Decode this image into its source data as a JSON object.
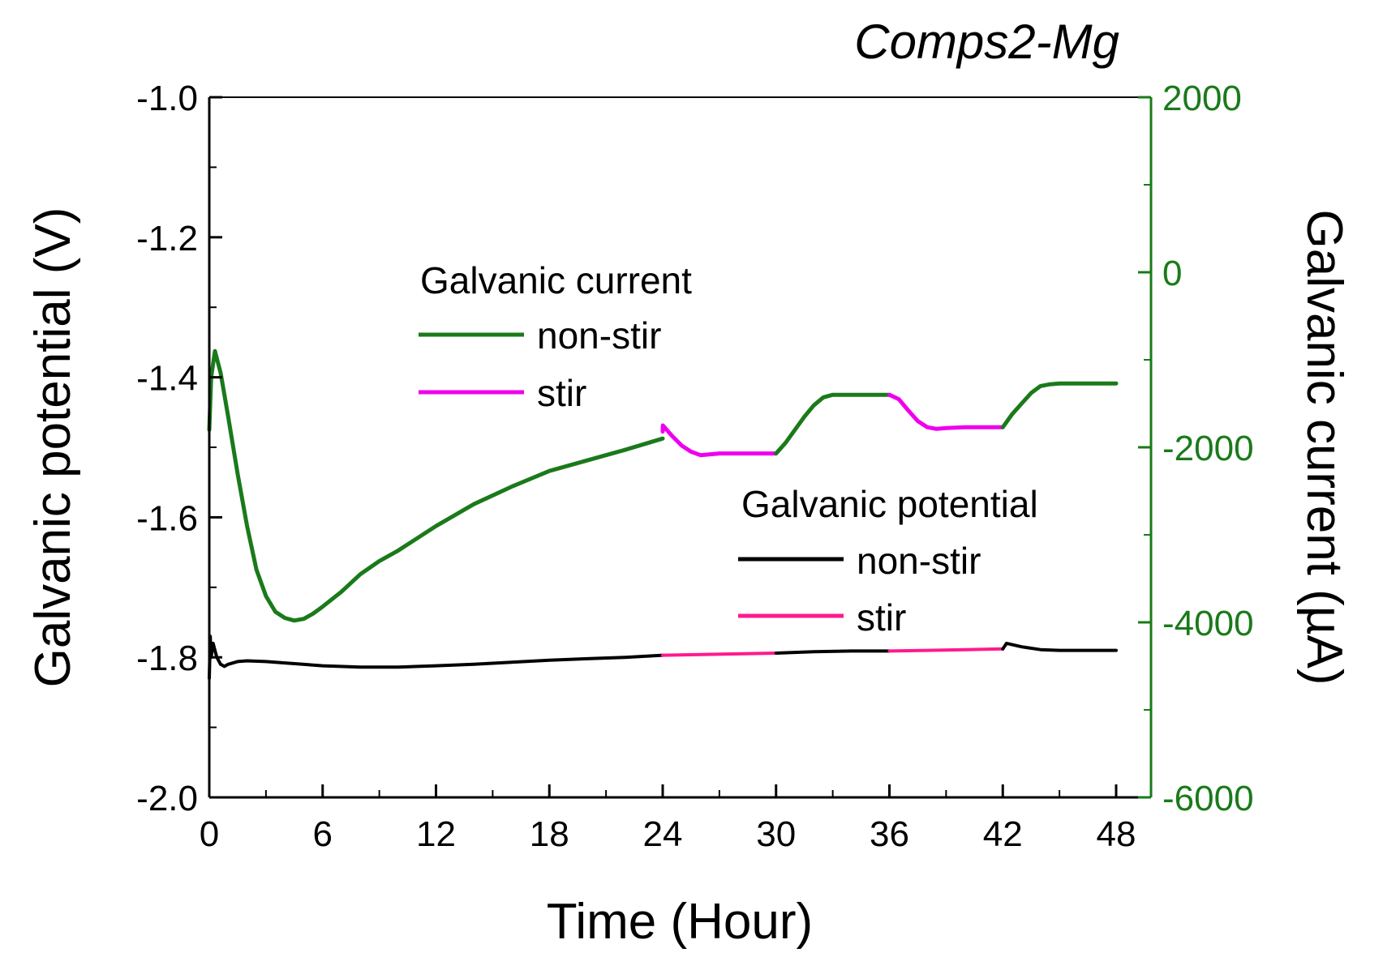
{
  "chart_data": {
    "type": "line",
    "title": "Comps2-Mg",
    "xlabel": "Time (Hour)",
    "ylabel_left": "Galvanic potential (V)",
    "ylabel_right": "Galvanic current (µA)",
    "xlim": [
      0,
      50
    ],
    "xticks": [
      "0",
      "6",
      "12",
      "18",
      "24",
      "30",
      "36",
      "42",
      "48"
    ],
    "xtick_values": [
      0,
      6,
      12,
      18,
      24,
      30,
      36,
      42,
      48
    ],
    "ylim_left": [
      -2.0,
      -1.0
    ],
    "yticks_left": [
      "-1.0",
      "-1.2",
      "-1.4",
      "-1.6",
      "-1.8",
      "-2.0"
    ],
    "ytick_values_left": [
      -1.0,
      -1.2,
      -1.4,
      -1.6,
      -1.8,
      -2.0
    ],
    "ylim_right": [
      -6000,
      2000
    ],
    "yticks_right": [
      "2000",
      "0",
      "-2000",
      "-4000",
      "-6000"
    ],
    "ytick_values_right": [
      2000,
      0,
      -2000,
      -4000,
      -6000
    ],
    "grid": false,
    "colors": {
      "current_non_stir": "#1a7a1a",
      "current_stir": "#ee00ee",
      "potential_non_stir": "#000000",
      "potential_stir": "#ff1a8c",
      "right_axis": "#1a7a1a"
    },
    "legends": [
      {
        "heading": "Galvanic current",
        "entries": [
          {
            "label": "non-stir",
            "color": "#1a7a1a"
          },
          {
            "label": "stir",
            "color": "#ee00ee"
          }
        ]
      },
      {
        "heading": "Galvanic potential",
        "entries": [
          {
            "label": "non-stir",
            "color": "#000000"
          },
          {
            "label": "stir",
            "color": "#ff1a8c"
          }
        ]
      }
    ],
    "series": [
      {
        "name": "Galvanic current non-stir (0-24 h)",
        "axis": "right",
        "color": "#1a7a1a",
        "x": [
          0,
          0.1,
          0.3,
          0.6,
          1,
          1.5,
          2,
          2.5,
          3,
          3.5,
          4,
          4.5,
          5,
          5.5,
          6,
          7,
          8,
          9,
          10,
          12,
          14,
          16,
          18,
          20,
          22,
          24
        ],
        "y": [
          -1800,
          -1200,
          -900,
          -1150,
          -1650,
          -2300,
          -2900,
          -3400,
          -3700,
          -3880,
          -3950,
          -3980,
          -3960,
          -3900,
          -3820,
          -3650,
          -3450,
          -3300,
          -3180,
          -2900,
          -2650,
          -2450,
          -2270,
          -2150,
          -2030,
          -1900
        ]
      },
      {
        "name": "Galvanic current stir (24-30 h)",
        "axis": "right",
        "color": "#ee00ee",
        "x": [
          24,
          24.01,
          24.5,
          25,
          25.5,
          26,
          27,
          28,
          29,
          30
        ],
        "y": [
          -1820,
          -1750,
          -1870,
          -1980,
          -2050,
          -2090,
          -2070,
          -2070,
          -2070,
          -2070
        ]
      },
      {
        "name": "Galvanic current non-stir (30-36 h)",
        "axis": "right",
        "color": "#1a7a1a",
        "x": [
          30,
          30.5,
          31,
          31.5,
          32,
          32.5,
          33,
          34,
          35,
          36
        ],
        "y": [
          -2070,
          -1950,
          -1800,
          -1650,
          -1520,
          -1430,
          -1400,
          -1400,
          -1400,
          -1400
        ]
      },
      {
        "name": "Galvanic current stir (36-42 h)",
        "axis": "right",
        "color": "#ee00ee",
        "x": [
          36,
          36.5,
          37,
          37.5,
          38,
          38.5,
          39,
          40,
          41,
          42
        ],
        "y": [
          -1400,
          -1450,
          -1580,
          -1700,
          -1770,
          -1790,
          -1780,
          -1770,
          -1770,
          -1770
        ]
      },
      {
        "name": "Galvanic current non-stir (42-48 h)",
        "axis": "right",
        "color": "#1a7a1a",
        "x": [
          42,
          42.5,
          43,
          43.5,
          44,
          44.5,
          45,
          46,
          47,
          48
        ],
        "y": [
          -1770,
          -1620,
          -1500,
          -1380,
          -1300,
          -1280,
          -1270,
          -1270,
          -1270,
          -1270
        ]
      },
      {
        "name": "Galvanic potential non-stir (0-24 h)",
        "axis": "left",
        "color": "#000000",
        "x": [
          0,
          0.05,
          0.1,
          0.2,
          0.3,
          0.4,
          0.6,
          0.8,
          1,
          1.5,
          2,
          3,
          4,
          6,
          8,
          10,
          12,
          14,
          16,
          18,
          20,
          22,
          24
        ],
        "y": [
          -1.83,
          -1.77,
          -1.8,
          -1.78,
          -1.79,
          -1.8,
          -1.81,
          -1.813,
          -1.81,
          -1.806,
          -1.805,
          -1.806,
          -1.808,
          -1.812,
          -1.814,
          -1.814,
          -1.812,
          -1.81,
          -1.807,
          -1.804,
          -1.802,
          -1.8,
          -1.797
        ]
      },
      {
        "name": "Galvanic potential stir (24-30 h)",
        "axis": "left",
        "color": "#ff1a8c",
        "x": [
          24,
          26,
          28,
          30
        ],
        "y": [
          -1.797,
          -1.796,
          -1.795,
          -1.794
        ]
      },
      {
        "name": "Galvanic potential non-stir (30-36 h)",
        "axis": "left",
        "color": "#000000",
        "x": [
          30,
          32,
          34,
          36
        ],
        "y": [
          -1.794,
          -1.792,
          -1.791,
          -1.791
        ]
      },
      {
        "name": "Galvanic potential stir (36-42 h)",
        "axis": "left",
        "color": "#ff1a8c",
        "x": [
          36,
          38,
          40,
          42
        ],
        "y": [
          -1.791,
          -1.79,
          -1.789,
          -1.788
        ]
      },
      {
        "name": "Galvanic potential non-stir (42-48 h)",
        "axis": "left",
        "color": "#000000",
        "x": [
          42,
          42.2,
          43,
          44,
          45,
          46,
          47,
          48
        ],
        "y": [
          -1.788,
          -1.78,
          -1.785,
          -1.789,
          -1.79,
          -1.79,
          -1.79,
          -1.79
        ]
      }
    ]
  }
}
